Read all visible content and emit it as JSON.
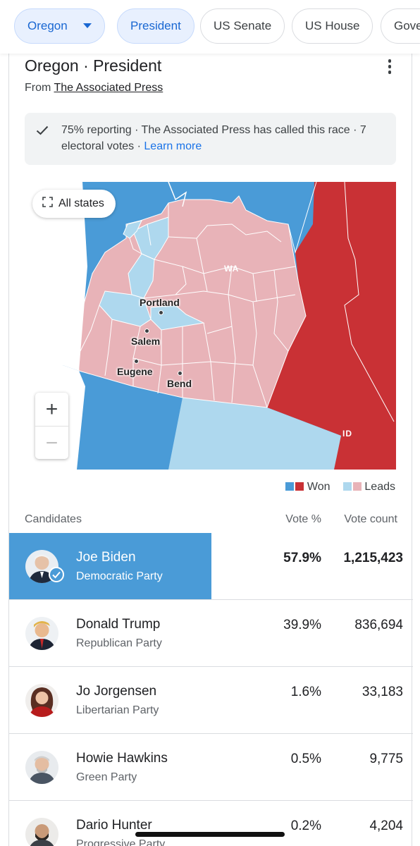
{
  "chips": [
    {
      "label": "Oregon",
      "active": true,
      "dropdown": true
    },
    {
      "label": "President",
      "active": true
    },
    {
      "label": "US Senate",
      "active": false
    },
    {
      "label": "US House",
      "active": false
    },
    {
      "label": "Gove",
      "active": false
    }
  ],
  "card": {
    "title": "Oregon · President",
    "source_prefix": "From",
    "source_link": "The Associated Press",
    "more_icon": "more-vert-icon"
  },
  "notice": {
    "icon": "check-icon",
    "text": "75% reporting · The Associated Press has called this race · 7 electoral votes ·",
    "link": "Learn more"
  },
  "map": {
    "all_states_label": "All states",
    "state_labels": {
      "wa": "WA",
      "id": "ID"
    },
    "cities": [
      "Portland",
      "Salem",
      "Eugene",
      "Bend"
    ],
    "zoom_in": "+",
    "zoom_out": "−",
    "colors": {
      "dem_won": "#4a9bd7",
      "rep_won": "#c93135",
      "dem_leads": "#aed8ee",
      "rep_leads": "#e8b3b8"
    }
  },
  "legend": {
    "won": "Won",
    "leads": "Leads"
  },
  "table": {
    "headers": {
      "candidates": "Candidates",
      "vote_pct": "Vote %",
      "vote_count": "Vote count"
    },
    "rows": [
      {
        "name": "Joe Biden",
        "party": "Democratic Party",
        "pct": "57.9%",
        "votes": "1,215,423",
        "winner": true
      },
      {
        "name": "Donald Trump",
        "party": "Republican Party",
        "pct": "39.9%",
        "votes": "836,694"
      },
      {
        "name": "Jo Jorgensen",
        "party": "Libertarian Party",
        "pct": "1.6%",
        "votes": "33,183"
      },
      {
        "name": "Howie Hawkins",
        "party": "Green Party",
        "pct": "0.5%",
        "votes": "9,775"
      },
      {
        "name": "Dario Hunter",
        "party": "Progressive Party",
        "pct": "0.2%",
        "votes": "4,204"
      }
    ]
  }
}
